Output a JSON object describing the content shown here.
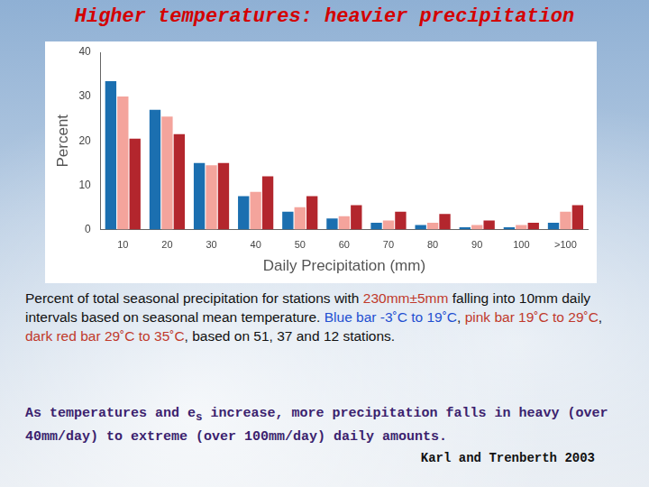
{
  "chart_data": {
    "type": "bar",
    "title": "Higher temperatures: heavier precipitation",
    "x_label": "Daily Precipitation (mm)",
    "y_label": "Percent",
    "categories": [
      "10",
      "20",
      "30",
      "40",
      "50",
      "60",
      "70",
      "80",
      "90",
      "100",
      ">100"
    ],
    "series": [
      {
        "name": "Blue bar -3˚C to 19˚C",
        "color": "#1b6fb0",
        "values": [
          33.5,
          27,
          15,
          7.5,
          4,
          2.5,
          1.5,
          1,
          0.5,
          0.5,
          1.5
        ]
      },
      {
        "name": "pink bar 19˚C to 29˚C",
        "color": "#f4a49c",
        "values": [
          30,
          25.5,
          14.5,
          8.5,
          5,
          3,
          2,
          1.5,
          1,
          1,
          4
        ]
      },
      {
        "name": "dark red bar 29˚C to 35˚C",
        "color": "#b3262d",
        "values": [
          20.5,
          21.5,
          15,
          12,
          7.5,
          5.5,
          4,
          3.5,
          2,
          1.5,
          5.5
        ]
      }
    ],
    "ylim": [
      0,
      40
    ],
    "yticks": [
      0,
      10,
      20,
      30,
      40
    ],
    "grid": false,
    "caption": {
      "before": "Percent of total seasonal precipitation for stations with ",
      "highlight": "230mm±5mm",
      "after": " falling into 10mm daily intervals based on seasonal mean temperature. ",
      "end": ", based on 51, 37 and 12 stations."
    },
    "note": {
      "before": "As temperatures and e",
      "subscript": "s",
      "after": " increase, more precipitation falls in heavy (over 40mm/day) to extreme (over 100mm/day) daily amounts."
    },
    "source": "Karl and Trenberth 2003"
  }
}
